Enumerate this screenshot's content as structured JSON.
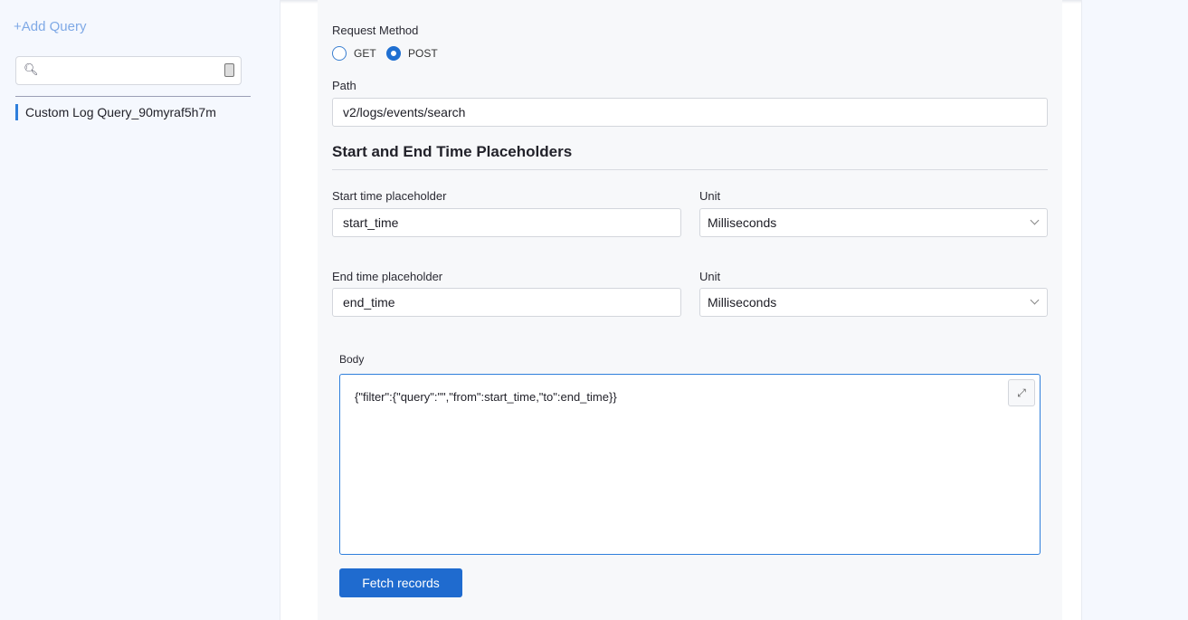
{
  "sidebar": {
    "add_query": "+Add Query",
    "search_placeholder": "",
    "queries": [
      "Custom Log Query_90myraf5h7m"
    ]
  },
  "form": {
    "request_method_label": "Request Method",
    "methods": [
      {
        "label": "GET",
        "selected": false
      },
      {
        "label": "POST",
        "selected": true
      }
    ],
    "path_label": "Path",
    "path_value": "v2/logs/events/search",
    "section_title": "Start and End Time Placeholders",
    "start_label": "Start time placeholder",
    "start_value": "start_time",
    "unit_label": "Unit",
    "start_unit": "Milliseconds",
    "end_label": "End time placeholder",
    "end_value": "end_time",
    "end_unit": "Milliseconds",
    "body_label": "Body",
    "body_value": "{\"filter\":{\"query\":\"\",\"from\":start_time,\"to\":end_time}}",
    "fetch_button": "Fetch records"
  },
  "colors": {
    "accent": "#1f6bcf"
  }
}
